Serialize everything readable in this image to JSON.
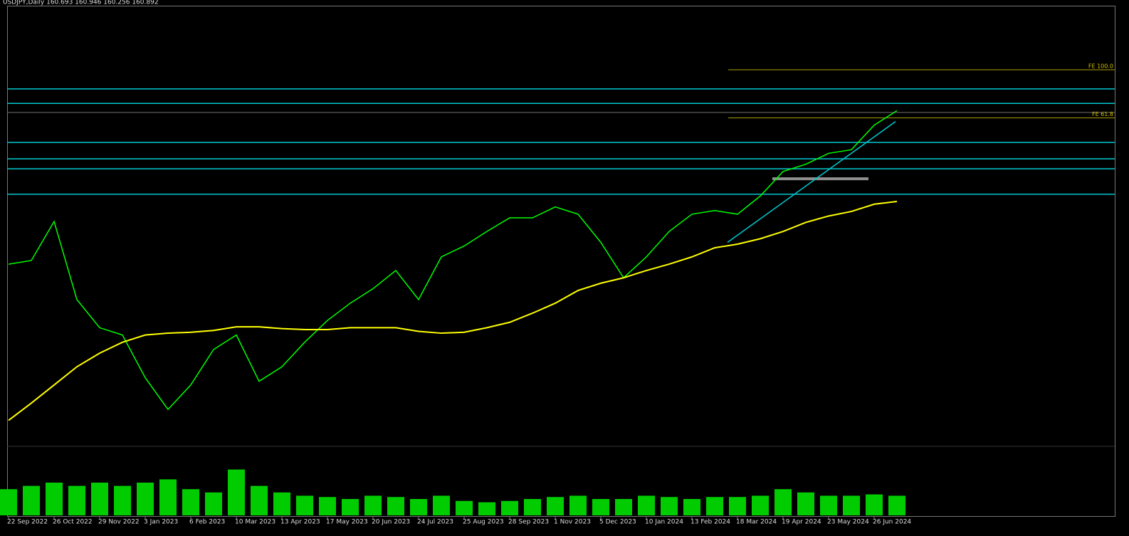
{
  "chart_data": {
    "type": "line",
    "title": "USDJPY,Daily 160.693 160.946 160.256 160.892",
    "categories": [
      "22 Sep 2022",
      null,
      "26 Oct 2022",
      null,
      "29 Nov 2022",
      null,
      "3 Jan 2023",
      null,
      "6 Feb 2023",
      null,
      "10 Mar 2023",
      null,
      "13 Apr 2023",
      null,
      "17 May 2023",
      null,
      "20 Jun 2023",
      null,
      "24 Jul 2023",
      null,
      "25 Aug 2023",
      null,
      "28 Sep 2023",
      null,
      "1 Nov 2023",
      null,
      "5 Dec 2023",
      null,
      "10 Jan 2024",
      null,
      "13 Feb 2024",
      null,
      "18 Mar 2024",
      null,
      "19 Apr 2024",
      null,
      "23 May 2024",
      null,
      "26 Jun 2024",
      null
    ],
    "series": [
      {
        "color": "#00ff00",
        "values": [
          144.0,
          144.4,
          148.7,
          140.1,
          137.0,
          136.2,
          131.5,
          128.0,
          130.7,
          134.6,
          136.2,
          131.1,
          132.7,
          135.4,
          137.8,
          139.7,
          141.3,
          143.3,
          140.1,
          144.8,
          146.0,
          147.6,
          149.1,
          149.1,
          150.3,
          149.5,
          146.4,
          142.5,
          144.8,
          147.6,
          149.5,
          149.9,
          149.5,
          151.5,
          154.2,
          155.0,
          156.2,
          156.6,
          159.3,
          160.9
        ]
      },
      {
        "color": "#ffff00",
        "values": [
          126.8,
          128.7,
          130.7,
          132.7,
          134.2,
          135.4,
          136.2,
          136.4,
          136.5,
          136.7,
          137.1,
          137.1,
          136.9,
          136.8,
          136.8,
          137.0,
          137.0,
          137.0,
          136.6,
          136.4,
          136.5,
          137.0,
          137.6,
          138.6,
          139.7,
          141.1,
          141.9,
          142.5,
          143.3,
          144.0,
          144.8,
          145.8,
          146.2,
          146.8,
          147.6,
          148.6,
          149.3,
          149.8,
          150.6,
          150.9
        ]
      }
    ],
    "volume": {
      "color": "#00cc00",
      "values": [
        40,
        45,
        50,
        45,
        50,
        45,
        50,
        55,
        40,
        35,
        70,
        45,
        35,
        30,
        28,
        25,
        30,
        28,
        25,
        30,
        22,
        20,
        22,
        25,
        28,
        30,
        25,
        25,
        30,
        28,
        25,
        28,
        28,
        30,
        40,
        35,
        30,
        30,
        32,
        30
      ]
    },
    "vlim": [
      0,
      100
    ],
    "ylim": [
      124.1,
      172.3
    ],
    "levels": {
      "color": "#00c8d0",
      "values": [
        163.3,
        161.7,
        157.4,
        155.6,
        154.5,
        151.7
      ]
    },
    "fibo": [
      {
        "label": "FE 100.0",
        "value": 165.4
      },
      {
        "label": "FE 61.8",
        "value": 160.1
      }
    ],
    "trend": {
      "color": "#00c8d0",
      "values": [
        146.4,
        159.7
      ]
    },
    "support": {
      "color": "#909090",
      "value": 153.4
    },
    "price_line": {
      "color": "#707070",
      "value": 160.7
    }
  }
}
